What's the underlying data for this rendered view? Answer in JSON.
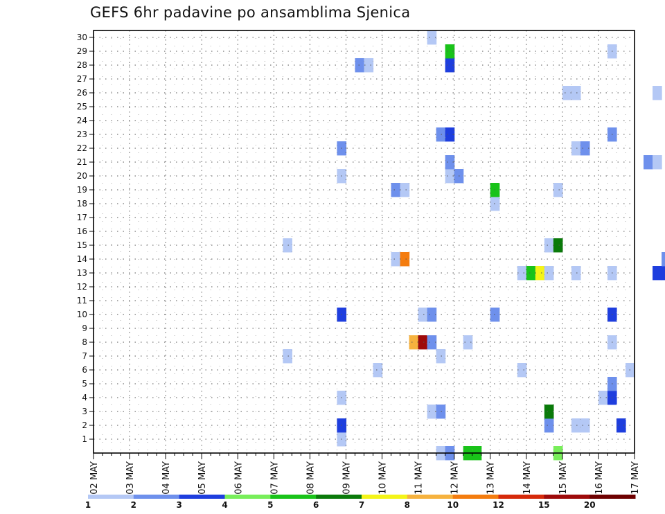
{
  "title": "GEFS 6hr padavine po ansamblima Sjenica",
  "chart_data": {
    "type": "heatmap",
    "title": "GEFS 6hr padavine po ansamblima Sjenica",
    "y_ticks": [
      "1",
      "2",
      "3",
      "4",
      "5",
      "6",
      "7",
      "8",
      "9",
      "10",
      "11",
      "12",
      "13",
      "14",
      "15",
      "16",
      "17",
      "18",
      "19",
      "20",
      "21",
      "22",
      "23",
      "24",
      "25",
      "26",
      "27",
      "28",
      "29",
      "30"
    ],
    "x_ticks": [
      "02 MAY",
      "03 MAY",
      "04 MAY",
      "05 MAY",
      "06 MAY",
      "07 MAY",
      "08 MAY",
      "09 MAY",
      "10 MAY",
      "11 MAY",
      "12 MAY",
      "13 MAY",
      "14 MAY",
      "15 MAY",
      "16 MAY",
      "17 MAY"
    ],
    "x_range": [
      "02 MAY 00h",
      "17 MAY 00h"
    ],
    "y_range": [
      0,
      30
    ],
    "time_step_hours": 6,
    "grid": true,
    "colorbar": {
      "boundaries": [
        "1",
        "2",
        "3",
        "4",
        "5",
        "6",
        "7",
        "8",
        "10",
        "12",
        "15",
        "20"
      ],
      "colors": [
        "#b4c8f5",
        "#6e90ec",
        "#1e3ede",
        "#78ee5a",
        "#19c319",
        "#0a7a0a",
        "#f4f418",
        "#f6b23e",
        "#f47c0e",
        "#d62a0a",
        "#9e0a0a",
        "#6e0000"
      ]
    },
    "cells": [
      [
        0,
        38,
        1
      ],
      [
        0,
        42,
        5
      ],
      [
        0,
        39,
        2
      ],
      [
        0,
        41,
        5
      ],
      [
        0,
        51,
        4
      ],
      [
        0,
        80,
        1
      ],
      [
        0,
        80,
        4
      ],
      [
        0,
        80,
        5
      ],
      [
        0,
        82,
        4
      ],
      [
        0,
        88,
        2
      ],
      [
        0,
        89,
        3
      ],
      [
        1,
        27,
        1
      ],
      [
        1,
        85,
        1
      ],
      [
        2,
        27,
        3
      ],
      [
        2,
        50,
        2
      ],
      [
        2,
        53,
        1
      ],
      [
        2,
        54,
        1
      ],
      [
        2,
        58,
        3
      ],
      [
        3,
        37,
        1
      ],
      [
        3,
        38,
        2
      ],
      [
        3,
        50,
        6
      ],
      [
        3,
        68,
        2
      ],
      [
        3,
        69,
        2
      ],
      [
        3,
        71,
        2
      ],
      [
        3,
        72,
        9
      ],
      [
        3,
        73,
        9
      ],
      [
        3,
        74,
        8
      ],
      [
        3,
        75,
        4
      ],
      [
        3,
        76,
        5
      ],
      [
        3,
        77,
        6
      ],
      [
        3,
        89,
        1
      ],
      [
        4,
        27,
        1
      ],
      [
        4,
        56,
        1
      ],
      [
        4,
        57,
        3
      ],
      [
        4,
        89,
        1
      ],
      [
        5,
        57,
        2
      ],
      [
        5,
        78,
        1
      ],
      [
        5,
        79,
        1
      ],
      [
        5,
        84,
        2
      ],
      [
        5,
        85,
        7
      ],
      [
        5,
        88,
        5
      ],
      [
        5,
        89,
        5
      ],
      [
        5,
        90,
        6
      ],
      [
        6,
        31,
        1
      ],
      [
        6,
        47,
        1
      ],
      [
        6,
        59,
        1
      ],
      [
        6,
        68,
        1
      ],
      [
        6,
        69,
        4
      ],
      [
        6,
        73,
        6
      ],
      [
        6,
        74,
        8
      ],
      [
        6,
        75,
        6
      ],
      [
        6,
        76,
        4
      ],
      [
        6,
        77,
        2
      ],
      [
        6,
        78,
        1
      ],
      [
        6,
        89,
        1
      ],
      [
        7,
        21,
        1
      ],
      [
        7,
        38,
        1
      ],
      [
        7,
        73,
        5
      ],
      [
        7,
        74,
        1
      ],
      [
        7,
        77,
        2
      ],
      [
        7,
        83,
        5
      ],
      [
        7,
        84,
        3
      ],
      [
        7,
        86,
        6
      ],
      [
        7,
        87,
        6
      ],
      [
        7,
        88,
        5
      ],
      [
        8,
        35,
        8
      ],
      [
        8,
        36,
        11
      ],
      [
        8,
        37,
        2
      ],
      [
        8,
        41,
        1
      ],
      [
        8,
        57,
        1
      ],
      [
        8,
        69,
        4
      ],
      [
        8,
        77,
        2
      ],
      [
        8,
        85,
        2
      ],
      [
        8,
        86,
        1
      ],
      [
        8,
        87,
        8
      ],
      [
        8,
        88,
        5
      ],
      [
        8,
        89,
        2
      ],
      [
        9,
        77,
        3
      ],
      [
        9,
        78,
        2
      ],
      [
        9,
        84,
        1
      ],
      [
        9,
        85,
        4
      ],
      [
        9,
        86,
        1
      ],
      [
        10,
        27,
        3
      ],
      [
        10,
        36,
        1
      ],
      [
        10,
        37,
        2
      ],
      [
        10,
        44,
        2
      ],
      [
        10,
        57,
        3
      ],
      [
        10,
        76,
        2
      ],
      [
        10,
        85,
        7
      ],
      [
        10,
        86,
        4
      ],
      [
        10,
        88,
        4
      ],
      [
        10,
        89,
        6
      ],
      [
        11,
        67,
        1
      ],
      [
        11,
        71,
        3
      ],
      [
        11,
        72,
        12
      ],
      [
        11,
        73,
        5
      ],
      [
        11,
        74,
        8
      ],
      [
        11,
        75,
        4
      ],
      [
        11,
        77,
        2
      ],
      [
        11,
        85,
        3
      ],
      [
        11,
        89,
        2
      ],
      [
        12,
        73,
        1
      ],
      [
        12,
        74,
        1
      ],
      [
        12,
        79,
        1
      ],
      [
        12,
        87,
        1
      ],
      [
        12,
        89,
        6
      ],
      [
        13,
        47,
        1
      ],
      [
        13,
        48,
        5
      ],
      [
        13,
        49,
        7
      ],
      [
        13,
        50,
        1
      ],
      [
        13,
        53,
        1
      ],
      [
        13,
        57,
        1
      ],
      [
        13,
        62,
        3
      ],
      [
        13,
        63,
        3
      ],
      [
        13,
        64,
        3
      ],
      [
        13,
        65,
        3
      ],
      [
        13,
        66,
        6
      ],
      [
        13,
        67,
        4
      ],
      [
        13,
        81,
        1
      ],
      [
        13,
        83,
        6
      ],
      [
        13,
        84,
        6
      ],
      [
        13,
        85,
        1
      ],
      [
        13,
        86,
        1
      ],
      [
        13,
        88,
        2
      ],
      [
        13,
        89,
        5
      ],
      [
        14,
        33,
        1
      ],
      [
        14,
        34,
        9
      ],
      [
        14,
        63,
        2
      ],
      [
        14,
        77,
        1
      ],
      [
        14,
        76,
        2
      ],
      [
        14,
        78,
        10
      ],
      [
        14,
        79,
        6
      ],
      [
        14,
        80,
        2
      ],
      [
        14,
        81,
        1
      ],
      [
        14,
        82,
        3
      ],
      [
        15,
        21,
        1
      ],
      [
        15,
        50,
        1
      ],
      [
        15,
        51,
        6
      ],
      [
        15,
        73,
        4
      ],
      [
        15,
        74,
        1
      ],
      [
        15,
        77,
        2
      ],
      [
        15,
        80,
        1
      ],
      [
        15,
        82,
        1
      ],
      [
        15,
        83,
        1
      ],
      [
        15,
        84,
        1
      ],
      [
        15,
        85,
        3
      ],
      [
        15,
        86,
        6
      ],
      [
        15,
        87,
        4
      ],
      [
        15,
        88,
        1
      ],
      [
        16,
        66,
        1
      ],
      [
        16,
        82,
        1
      ],
      [
        16,
        83,
        2
      ],
      [
        16,
        85,
        3
      ],
      [
        16,
        86,
        1
      ],
      [
        17,
        83,
        1
      ],
      [
        17,
        85,
        3
      ],
      [
        17,
        86,
        1
      ],
      [
        18,
        44,
        1
      ],
      [
        18,
        83,
        1
      ],
      [
        18,
        84,
        4
      ],
      [
        18,
        85,
        12
      ],
      [
        18,
        86,
        8
      ],
      [
        18,
        87,
        4
      ],
      [
        19,
        33,
        2
      ],
      [
        19,
        34,
        1
      ],
      [
        19,
        44,
        5
      ],
      [
        19,
        51,
        1
      ],
      [
        19,
        78,
        2
      ],
      [
        19,
        86,
        2
      ],
      [
        19,
        87,
        6
      ],
      [
        20,
        27,
        1
      ],
      [
        20,
        39,
        1
      ],
      [
        20,
        40,
        2
      ],
      [
        21,
        39,
        2
      ],
      [
        21,
        61,
        2
      ],
      [
        21,
        62,
        1
      ],
      [
        21,
        72,
        2
      ],
      [
        21,
        73,
        10
      ],
      [
        21,
        76,
        1
      ],
      [
        21,
        77,
        1
      ],
      [
        21,
        85,
        3
      ],
      [
        21,
        86,
        4
      ],
      [
        21,
        87,
        4
      ],
      [
        21,
        88,
        3
      ],
      [
        22,
        27,
        2
      ],
      [
        22,
        53,
        1
      ],
      [
        22,
        54,
        2
      ],
      [
        22,
        72,
        3
      ],
      [
        23,
        38,
        2
      ],
      [
        23,
        39,
        3
      ],
      [
        23,
        57,
        2
      ],
      [
        23,
        67,
        1
      ],
      [
        23,
        68,
        2
      ],
      [
        24,
        78,
        4
      ],
      [
        24,
        82,
        1
      ],
      [
        24,
        83,
        3
      ],
      [
        24,
        86,
        3
      ],
      [
        24,
        87,
        5
      ],
      [
        26,
        52,
        1
      ],
      [
        26,
        53,
        1
      ],
      [
        26,
        62,
        1
      ],
      [
        26,
        68,
        1
      ],
      [
        26,
        75,
        4
      ],
      [
        26,
        76,
        5
      ],
      [
        26,
        77,
        3
      ],
      [
        26,
        78,
        2
      ],
      [
        26,
        82,
        1
      ],
      [
        26,
        83,
        2
      ],
      [
        26,
        84,
        1
      ],
      [
        27,
        82,
        1
      ],
      [
        27,
        83,
        2
      ],
      [
        28,
        29,
        2
      ],
      [
        28,
        30,
        1
      ],
      [
        28,
        39,
        3
      ],
      [
        28,
        86,
        1
      ],
      [
        28,
        87,
        4
      ],
      [
        28,
        88,
        5
      ],
      [
        29,
        39,
        5
      ],
      [
        29,
        57,
        1
      ],
      [
        30,
        37,
        1
      ],
      [
        30,
        80,
        2
      ],
      [
        30,
        81,
        8
      ],
      [
        30,
        82,
        3
      ],
      [
        30,
        84,
        2
      ],
      [
        30,
        85,
        1
      ],
      [
        30,
        86,
        3
      ],
      [
        30,
        87,
        1
      ]
    ]
  }
}
